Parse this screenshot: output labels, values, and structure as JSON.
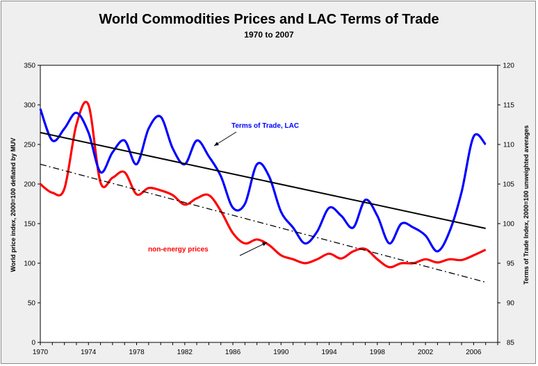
{
  "chart_data": {
    "type": "line",
    "title": "World Commodities Prices and LAC Terms of Trade",
    "subtitle": "1970 to 2007",
    "y_left_label": "World price index, 2000=100 deflated by MUV",
    "y_right_label": "Terms of Trade Index, 2000=100 unweighted averages",
    "x_ticks": [
      "1970",
      "1974",
      "1978",
      "1982",
      "1986",
      "1990",
      "1994",
      "1998",
      "2002",
      "2006"
    ],
    "y_left_ticks": [
      "0",
      "50",
      "100",
      "150",
      "200",
      "250",
      "300",
      "350"
    ],
    "y_right_ticks": [
      "85",
      "90",
      "95",
      "100",
      "105",
      "110",
      "115",
      "120"
    ],
    "ylim_left": [
      0,
      350
    ],
    "ylim_right": [
      85,
      120
    ],
    "xlim": [
      1970,
      2008
    ],
    "grid": false,
    "series": [
      {
        "name": "non-energy prices",
        "color": "#ff0000",
        "axis": "left",
        "x": [
          1970,
          1971,
          1972,
          1973,
          1974,
          1975,
          1976,
          1977,
          1978,
          1979,
          1980,
          1981,
          1982,
          1983,
          1984,
          1985,
          1986,
          1987,
          1988,
          1989,
          1990,
          1991,
          1992,
          1993,
          1994,
          1995,
          1996,
          1997,
          1998,
          1999,
          2000,
          2001,
          2002,
          2003,
          2004,
          2005,
          2006,
          2007
        ],
        "values": [
          200,
          189,
          194,
          275,
          300,
          202,
          208,
          215,
          187,
          195,
          192,
          186,
          174,
          182,
          186,
          166,
          138,
          125,
          130,
          123,
          110,
          105,
          100,
          105,
          112,
          106,
          115,
          118,
          105,
          95,
          100,
          100,
          105,
          101,
          105,
          104,
          110,
          117
        ]
      },
      {
        "name": "Terms of Trade, LAC",
        "color": "#0000ff",
        "axis": "right",
        "x": [
          1970,
          1971,
          1972,
          1973,
          1974,
          1975,
          1976,
          1977,
          1978,
          1979,
          1980,
          1981,
          1982,
          1983,
          1984,
          1985,
          1986,
          1987,
          1988,
          1989,
          1990,
          1991,
          1992,
          1993,
          1994,
          1995,
          1996,
          1997,
          1998,
          1999,
          2000,
          2001,
          2002,
          2003,
          2004,
          2005,
          2006,
          2007
        ],
        "values": [
          114.5,
          110.5,
          112,
          114,
          111.5,
          106.5,
          109,
          110.5,
          107.5,
          112,
          113.5,
          109.5,
          107.5,
          110.5,
          108.5,
          106,
          102,
          102.5,
          107.5,
          106,
          101.5,
          99.5,
          97.5,
          99,
          102,
          101,
          99.5,
          103,
          101,
          97.5,
          100,
          99.5,
          98.5,
          96.5,
          99,
          104,
          111,
          110
        ]
      },
      {
        "name": "",
        "kind": "trend",
        "style": "solid",
        "color": "#000000",
        "axis": "right",
        "x": [
          1970,
          2007
        ],
        "values": [
          111.5,
          99.4
        ]
      },
      {
        "name": "",
        "kind": "trend",
        "style": "dash-dot",
        "color": "#000000",
        "axis": "left",
        "x": [
          1970,
          2007
        ],
        "values": [
          225,
          76
        ]
      }
    ],
    "annotations": [
      {
        "text": "Terms of Trade, LAC",
        "color": "#0000ff"
      },
      {
        "text": "non-energy prices",
        "color": "#ff0000"
      }
    ]
  }
}
